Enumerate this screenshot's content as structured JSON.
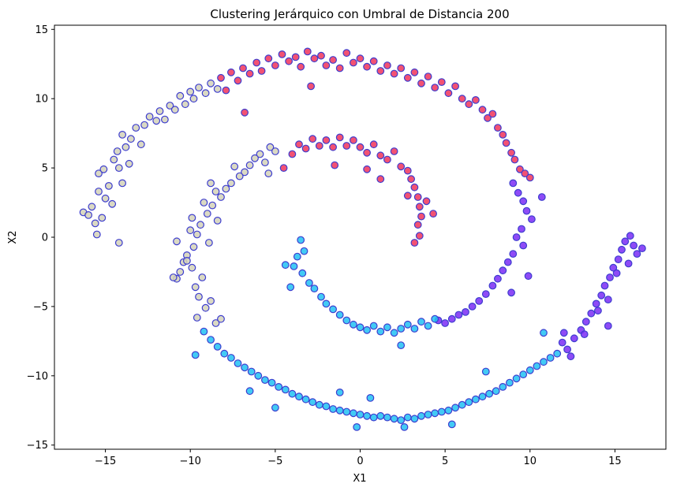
{
  "chart_data": {
    "type": "scatter",
    "title": "Clustering Jerárquico con Umbral de Distancia 200",
    "xlabel": "X1",
    "ylabel": "X2",
    "xlim": [
      -18,
      18
    ],
    "ylim": [
      -15.3,
      15.3
    ],
    "xticks": [
      -15,
      -10,
      -5,
      0,
      5,
      10,
      15
    ],
    "yticks": [
      -15,
      -10,
      -5,
      0,
      5,
      10,
      15
    ],
    "grid": false,
    "legend": "none",
    "marker_edge_color": "#3d3dcf",
    "series": [
      {
        "color": "#d4d2b8",
        "points": [
          [
            -16.3,
            1.8
          ],
          [
            -16.0,
            1.6
          ],
          [
            -15.8,
            2.2
          ],
          [
            -15.6,
            1.0
          ],
          [
            -15.5,
            0.2
          ],
          [
            -15.4,
            3.3
          ],
          [
            -15.2,
            1.4
          ],
          [
            -15.0,
            2.8
          ],
          [
            -15.4,
            4.6
          ],
          [
            -15.1,
            4.9
          ],
          [
            -14.8,
            3.7
          ],
          [
            -14.6,
            2.4
          ],
          [
            -14.5,
            5.6
          ],
          [
            -14.2,
            5.0
          ],
          [
            -14.0,
            3.9
          ],
          [
            -14.3,
            6.2
          ],
          [
            -13.8,
            6.5
          ],
          [
            -13.6,
            5.3
          ],
          [
            -14.2,
            -0.4
          ],
          [
            -14.0,
            7.4
          ],
          [
            -13.5,
            7.1
          ],
          [
            -13.2,
            7.9
          ],
          [
            -12.9,
            6.7
          ],
          [
            -12.7,
            8.1
          ],
          [
            -12.4,
            8.7
          ],
          [
            -12.0,
            8.4
          ],
          [
            -11.8,
            9.1
          ],
          [
            -11.5,
            8.5
          ],
          [
            -11.2,
            9.5
          ],
          [
            -10.9,
            9.2
          ],
          [
            -10.6,
            10.2
          ],
          [
            -10.3,
            9.6
          ],
          [
            -10.0,
            10.5
          ],
          [
            -9.8,
            10.0
          ],
          [
            -9.5,
            10.8
          ],
          [
            -9.1,
            10.4
          ],
          [
            -8.8,
            11.1
          ],
          [
            -8.4,
            10.7
          ],
          [
            -5.3,
            6.5
          ],
          [
            -5.0,
            6.2
          ],
          [
            -5.6,
            5.4
          ],
          [
            -5.9,
            6.0
          ],
          [
            -6.2,
            5.7
          ],
          [
            -6.5,
            5.2
          ],
          [
            -6.8,
            4.7
          ],
          [
            -7.1,
            4.4
          ],
          [
            -7.4,
            5.1
          ],
          [
            -7.6,
            3.9
          ],
          [
            -7.9,
            3.5
          ],
          [
            -8.2,
            2.9
          ],
          [
            -8.5,
            3.3
          ],
          [
            -8.7,
            2.3
          ],
          [
            -9.0,
            1.7
          ],
          [
            -9.2,
            2.5
          ],
          [
            -9.4,
            0.9
          ],
          [
            -9.6,
            0.2
          ],
          [
            -9.8,
            -0.7
          ],
          [
            -10.0,
            0.5
          ],
          [
            -10.2,
            -1.3
          ],
          [
            -10.4,
            -1.8
          ],
          [
            -10.6,
            -2.5
          ],
          [
            -10.8,
            -3.0
          ],
          [
            -9.9,
            -2.2
          ],
          [
            -9.7,
            -3.6
          ],
          [
            -9.5,
            -4.3
          ],
          [
            -9.3,
            -2.9
          ],
          [
            -8.9,
            -0.4
          ],
          [
            -10.8,
            -0.3
          ],
          [
            -11.0,
            -2.9
          ],
          [
            -9.1,
            -5.1
          ],
          [
            -8.8,
            -4.6
          ],
          [
            -9.6,
            -5.8
          ],
          [
            -8.5,
            -6.2
          ],
          [
            -8.2,
            -5.9
          ],
          [
            -10.2,
            -1.7
          ],
          [
            -9.9,
            1.4
          ],
          [
            -8.4,
            1.2
          ],
          [
            -8.8,
            3.9
          ],
          [
            -5.4,
            4.6
          ]
        ]
      },
      {
        "color": "#f0345a",
        "points": [
          [
            -8.2,
            11.5
          ],
          [
            -7.6,
            11.9
          ],
          [
            -7.2,
            11.3
          ],
          [
            -6.9,
            12.2
          ],
          [
            -6.5,
            11.8
          ],
          [
            -6.1,
            12.6
          ],
          [
            -5.8,
            12.0
          ],
          [
            -5.4,
            12.9
          ],
          [
            -5.0,
            12.4
          ],
          [
            -4.6,
            13.2
          ],
          [
            -4.2,
            12.7
          ],
          [
            -3.8,
            13.0
          ],
          [
            -3.5,
            12.3
          ],
          [
            -3.1,
            13.4
          ],
          [
            -2.7,
            12.9
          ],
          [
            -2.3,
            13.1
          ],
          [
            -2.0,
            12.4
          ],
          [
            -1.6,
            12.8
          ],
          [
            -1.2,
            12.2
          ],
          [
            -0.8,
            13.3
          ],
          [
            -0.4,
            12.6
          ],
          [
            0.0,
            12.9
          ],
          [
            0.4,
            12.3
          ],
          [
            0.8,
            12.7
          ],
          [
            1.2,
            12.0
          ],
          [
            1.6,
            12.4
          ],
          [
            2.0,
            11.8
          ],
          [
            2.4,
            12.2
          ],
          [
            2.8,
            11.5
          ],
          [
            3.2,
            11.9
          ],
          [
            3.6,
            11.1
          ],
          [
            4.0,
            11.6
          ],
          [
            4.4,
            10.8
          ],
          [
            4.8,
            11.2
          ],
          [
            5.2,
            10.4
          ],
          [
            5.6,
            10.9
          ],
          [
            6.0,
            10.0
          ],
          [
            6.4,
            9.6
          ],
          [
            6.8,
            9.9
          ],
          [
            7.2,
            9.2
          ],
          [
            7.5,
            8.6
          ],
          [
            7.8,
            8.9
          ],
          [
            8.1,
            7.9
          ],
          [
            8.4,
            7.4
          ],
          [
            8.6,
            6.8
          ],
          [
            8.9,
            6.1
          ],
          [
            9.1,
            5.6
          ],
          [
            9.4,
            4.9
          ],
          [
            9.7,
            4.6
          ],
          [
            10.0,
            4.3
          ],
          [
            -7.9,
            10.6
          ],
          [
            -2.9,
            10.9
          ],
          [
            -6.8,
            9.0
          ],
          [
            -4.0,
            6.0
          ],
          [
            -3.6,
            6.7
          ],
          [
            -3.2,
            6.4
          ],
          [
            -2.8,
            7.1
          ],
          [
            -2.4,
            6.6
          ],
          [
            -2.0,
            7.0
          ],
          [
            -1.6,
            6.5
          ],
          [
            -1.2,
            7.2
          ],
          [
            -0.8,
            6.6
          ],
          [
            -0.4,
            7.0
          ],
          [
            0.0,
            6.5
          ],
          [
            0.4,
            6.1
          ],
          [
            0.8,
            6.7
          ],
          [
            1.2,
            5.9
          ],
          [
            1.6,
            5.6
          ],
          [
            2.0,
            6.2
          ],
          [
            2.4,
            5.1
          ],
          [
            2.8,
            4.8
          ],
          [
            3.0,
            4.2
          ],
          [
            3.2,
            3.6
          ],
          [
            3.4,
            2.9
          ],
          [
            3.5,
            2.2
          ],
          [
            3.6,
            1.5
          ],
          [
            3.4,
            0.9
          ],
          [
            3.5,
            0.1
          ],
          [
            3.2,
            -0.4
          ],
          [
            1.2,
            4.2
          ],
          [
            0.4,
            4.9
          ],
          [
            -1.5,
            5.2
          ],
          [
            -4.5,
            5.0
          ],
          [
            2.8,
            3.0
          ],
          [
            3.9,
            2.6
          ],
          [
            4.3,
            1.7
          ]
        ]
      },
      {
        "color": "#7a2cf4",
        "points": [
          [
            9.0,
            3.9
          ],
          [
            9.3,
            3.2
          ],
          [
            9.6,
            2.6
          ],
          [
            9.8,
            1.9
          ],
          [
            10.1,
            1.3
          ],
          [
            9.5,
            0.6
          ],
          [
            9.2,
            0.0
          ],
          [
            9.6,
            -0.6
          ],
          [
            9.0,
            -1.2
          ],
          [
            8.7,
            -1.8
          ],
          [
            8.4,
            -2.4
          ],
          [
            8.1,
            -3.0
          ],
          [
            7.8,
            -3.5
          ],
          [
            7.4,
            -4.1
          ],
          [
            7.0,
            -4.6
          ],
          [
            6.6,
            -5.0
          ],
          [
            6.2,
            -5.4
          ],
          [
            5.8,
            -5.6
          ],
          [
            5.4,
            -5.9
          ],
          [
            5.0,
            -6.2
          ],
          [
            4.6,
            -6.0
          ],
          [
            10.7,
            2.9
          ],
          [
            9.9,
            -2.8
          ],
          [
            8.9,
            -4.0
          ],
          [
            11.9,
            -7.6
          ],
          [
            12.2,
            -8.1
          ],
          [
            12.6,
            -7.3
          ],
          [
            13.0,
            -6.7
          ],
          [
            13.3,
            -6.1
          ],
          [
            13.6,
            -5.5
          ],
          [
            13.9,
            -4.8
          ],
          [
            14.2,
            -4.2
          ],
          [
            14.4,
            -3.5
          ],
          [
            14.7,
            -2.9
          ],
          [
            14.9,
            -2.2
          ],
          [
            15.2,
            -1.6
          ],
          [
            15.4,
            -0.9
          ],
          [
            15.6,
            -0.3
          ],
          [
            15.9,
            0.1
          ],
          [
            16.1,
            -0.6
          ],
          [
            16.3,
            -1.2
          ],
          [
            16.6,
            -0.8
          ],
          [
            15.8,
            -1.9
          ],
          [
            15.1,
            -2.6
          ],
          [
            14.6,
            -4.5
          ],
          [
            14.0,
            -5.3
          ],
          [
            13.2,
            -7.0
          ],
          [
            12.4,
            -8.6
          ],
          [
            12.0,
            -6.9
          ],
          [
            14.6,
            -6.4
          ]
        ]
      },
      {
        "color": "#21c1f3",
        "points": [
          [
            -3.5,
            -0.2
          ],
          [
            -3.3,
            -1.0
          ],
          [
            -3.7,
            -1.4
          ],
          [
            -3.9,
            -2.1
          ],
          [
            -3.4,
            -2.6
          ],
          [
            -3.0,
            -3.3
          ],
          [
            -2.7,
            -3.7
          ],
          [
            -2.3,
            -4.3
          ],
          [
            -2.0,
            -4.8
          ],
          [
            -1.6,
            -5.2
          ],
          [
            -1.2,
            -5.6
          ],
          [
            -0.8,
            -6.0
          ],
          [
            -0.4,
            -6.3
          ],
          [
            0.0,
            -6.5
          ],
          [
            0.4,
            -6.7
          ],
          [
            0.8,
            -6.4
          ],
          [
            1.2,
            -6.8
          ],
          [
            1.6,
            -6.5
          ],
          [
            2.0,
            -6.9
          ],
          [
            2.4,
            -6.6
          ],
          [
            2.8,
            -6.3
          ],
          [
            3.2,
            -6.6
          ],
          [
            3.6,
            -6.1
          ],
          [
            4.0,
            -6.4
          ],
          [
            4.4,
            -5.9
          ],
          [
            -4.1,
            -3.6
          ],
          [
            -4.4,
            -2.0
          ],
          [
            2.4,
            -7.8
          ],
          [
            -9.2,
            -6.8
          ],
          [
            -8.8,
            -7.4
          ],
          [
            -8.4,
            -7.9
          ],
          [
            -8.0,
            -8.4
          ],
          [
            -7.6,
            -8.7
          ],
          [
            -7.2,
            -9.1
          ],
          [
            -6.8,
            -9.4
          ],
          [
            -6.4,
            -9.7
          ],
          [
            -6.0,
            -10.0
          ],
          [
            -5.6,
            -10.3
          ],
          [
            -5.2,
            -10.5
          ],
          [
            -4.8,
            -10.8
          ],
          [
            -4.4,
            -11.0
          ],
          [
            -4.0,
            -11.3
          ],
          [
            -3.6,
            -11.5
          ],
          [
            -3.2,
            -11.7
          ],
          [
            -2.8,
            -11.9
          ],
          [
            -2.4,
            -12.1
          ],
          [
            -2.0,
            -12.2
          ],
          [
            -1.6,
            -12.4
          ],
          [
            -1.2,
            -12.5
          ],
          [
            -0.8,
            -12.6
          ],
          [
            -0.4,
            -12.7
          ],
          [
            0.0,
            -12.8
          ],
          [
            0.4,
            -12.9
          ],
          [
            0.8,
            -13.0
          ],
          [
            1.2,
            -12.9
          ],
          [
            1.6,
            -13.0
          ],
          [
            2.0,
            -13.1
          ],
          [
            2.4,
            -13.2
          ],
          [
            2.8,
            -13.0
          ],
          [
            3.2,
            -13.1
          ],
          [
            3.6,
            -12.9
          ],
          [
            4.0,
            -12.8
          ],
          [
            4.4,
            -12.7
          ],
          [
            4.8,
            -12.6
          ],
          [
            5.2,
            -12.5
          ],
          [
            5.6,
            -12.3
          ],
          [
            6.0,
            -12.1
          ],
          [
            6.4,
            -11.9
          ],
          [
            6.8,
            -11.7
          ],
          [
            7.2,
            -11.5
          ],
          [
            7.6,
            -11.3
          ],
          [
            8.0,
            -11.1
          ],
          [
            8.4,
            -10.8
          ],
          [
            8.8,
            -10.5
          ],
          [
            9.2,
            -10.2
          ],
          [
            9.6,
            -9.9
          ],
          [
            10.0,
            -9.6
          ],
          [
            10.4,
            -9.3
          ],
          [
            10.8,
            -9.0
          ],
          [
            11.2,
            -8.7
          ],
          [
            11.6,
            -8.4
          ],
          [
            -0.2,
            -13.7
          ],
          [
            2.6,
            -13.7
          ],
          [
            5.4,
            -13.5
          ],
          [
            -5.0,
            -12.3
          ],
          [
            -9.7,
            -8.5
          ],
          [
            7.4,
            -9.7
          ],
          [
            10.8,
            -6.9
          ],
          [
            -1.2,
            -11.2
          ],
          [
            -6.5,
            -11.1
          ],
          [
            0.6,
            -11.6
          ]
        ]
      }
    ]
  }
}
